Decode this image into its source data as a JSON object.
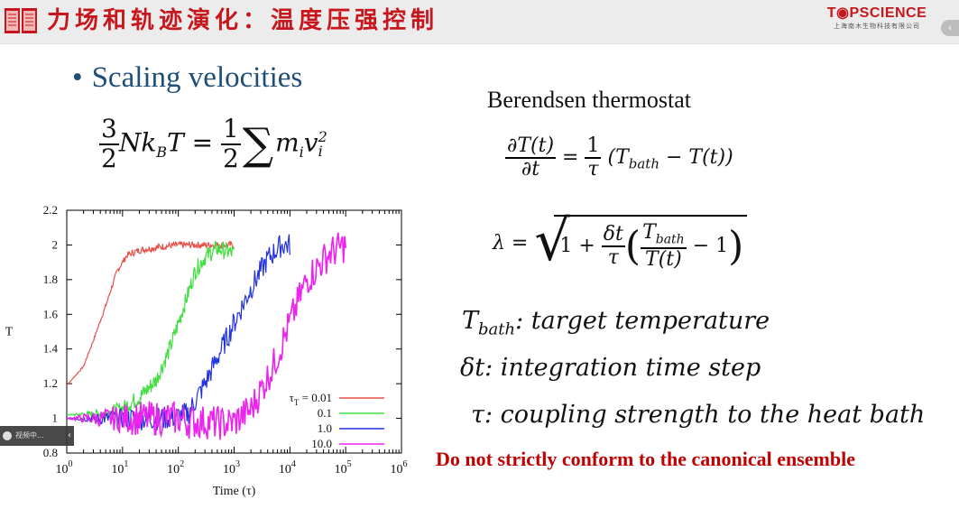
{
  "header": {
    "title": "力场和轨迹演化：温度压强控制",
    "logo_main": "T◉PSCIENCE",
    "logo_sub": "上海南木生物科技有限公司",
    "collapse_glyph": "‹",
    "icon": "slides-book-icon"
  },
  "slide": {
    "bullet": "•",
    "bullet_title": "Scaling velocities",
    "berendsen_title": "Berendsen thermostat",
    "eq1": {
      "num1": "3",
      "den1": "2",
      "lhs_rest": "Nk",
      "kb_sub": "B",
      "T": "T",
      "eq": " = ",
      "num2": "1",
      "den2": "2",
      "sum": "∑",
      "m": "m",
      "msub": "i",
      "v": "v",
      "vsub": "i",
      "vsup": "2"
    },
    "eq2": {
      "num": "∂T(t)",
      "den": "∂t",
      "eq": " = ",
      "num2": "1",
      "den2": "τ",
      "open": "(T",
      "sub": "bath",
      "rest": " − T(t))"
    },
    "eq3": {
      "lambda": "λ = ",
      "one": "1 + ",
      "num": "δt",
      "den": "τ",
      "inner_num_T": "T",
      "inner_num_sub": "bath",
      "inner_den": "T(t)",
      "minus": " − 1",
      "lp": "(",
      "rp": ")",
      "radical": "√"
    },
    "defs": [
      {
        "sym": "T",
        "sub": "bath",
        "text": ": target temperature"
      },
      {
        "sym": "δt",
        "sub": "",
        "text": ": integration time step"
      },
      {
        "sym": "τ",
        "sub": "",
        "text": ": coupling strength to the heat bath"
      }
    ],
    "warning": "Do not strictly conform to the canonical ensemble",
    "colors": {
      "title_red": "#c8161d",
      "bullet_blue": "#1f4e79",
      "warning_red": "#c00000"
    }
  },
  "overlay": {
    "label": "视频中...",
    "arrow": "‹"
  },
  "chart_data": {
    "type": "line",
    "xlabel": "Time (τ)",
    "ylabel": "T",
    "x_scale": "log",
    "xlim": [
      1,
      1000000
    ],
    "ylim": [
      0.8,
      2.2
    ],
    "x_ticks": [
      {
        "base": "10",
        "exp": "0"
      },
      {
        "base": "10",
        "exp": "1"
      },
      {
        "base": "10",
        "exp": "2"
      },
      {
        "base": "10",
        "exp": "3"
      },
      {
        "base": "10",
        "exp": "4"
      },
      {
        "base": "10",
        "exp": "5"
      },
      {
        "base": "10",
        "exp": "6"
      }
    ],
    "y_ticks": [
      "0.8",
      "1",
      "1.2",
      "1.4",
      "1.6",
      "1.8",
      "2",
      "2.2"
    ],
    "legend_prefix": "τ",
    "legend_prefix_sub": "T",
    "legend_placement": "bottom-right",
    "series": [
      {
        "name": "= 0.01",
        "color": "#e8504a",
        "noise": 0.02,
        "points": [
          [
            1,
            1.19
          ],
          [
            2,
            1.3
          ],
          [
            3,
            1.45
          ],
          [
            5,
            1.65
          ],
          [
            8,
            1.85
          ],
          [
            12,
            1.94
          ],
          [
            20,
            1.97
          ],
          [
            50,
            1.99
          ],
          [
            100,
            2.0
          ],
          [
            300,
            2.0
          ],
          [
            500,
            2.0
          ],
          [
            1000,
            2.0
          ]
        ]
      },
      {
        "name": "0.1",
        "color": "#44dd44",
        "noise": 0.05,
        "points": [
          [
            1,
            1.02
          ],
          [
            5,
            1.03
          ],
          [
            10,
            1.06
          ],
          [
            20,
            1.12
          ],
          [
            40,
            1.22
          ],
          [
            70,
            1.4
          ],
          [
            100,
            1.55
          ],
          [
            150,
            1.72
          ],
          [
            200,
            1.85
          ],
          [
            300,
            1.93
          ],
          [
            500,
            1.98
          ],
          [
            1000,
            1.95
          ]
        ]
      },
      {
        "name": "1.0",
        "color": "#2233dd",
        "noise": 0.07,
        "points": [
          [
            1,
            1.0
          ],
          [
            50,
            1.0
          ],
          [
            100,
            1.01
          ],
          [
            150,
            1.03
          ],
          [
            200,
            1.1
          ],
          [
            300,
            1.2
          ],
          [
            500,
            1.35
          ],
          [
            1000,
            1.55
          ],
          [
            2000,
            1.75
          ],
          [
            4000,
            1.92
          ],
          [
            7000,
            2.0
          ],
          [
            10000,
            2.0
          ]
        ]
      },
      {
        "name": "10.0",
        "color": "#ee22ee",
        "noise": 0.1,
        "points": [
          [
            1,
            1.0
          ],
          [
            100,
            1.0
          ],
          [
            150,
            0.98
          ],
          [
            300,
            0.98
          ],
          [
            700,
            0.97
          ],
          [
            1000,
            0.98
          ],
          [
            2000,
            1.05
          ],
          [
            5000,
            1.3
          ],
          [
            10000,
            1.55
          ],
          [
            20000,
            1.8
          ],
          [
            50000,
            1.95
          ],
          [
            100000,
            2.0
          ]
        ]
      }
    ]
  }
}
